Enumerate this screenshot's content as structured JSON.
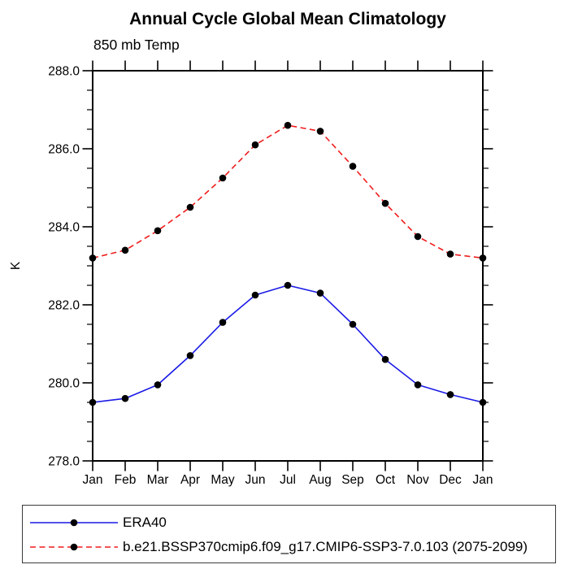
{
  "chart_data": {
    "type": "line",
    "title": "Annual Cycle Global Mean Climatology",
    "subtitle": "850 mb Temp",
    "ylabel": "K",
    "xlabel": "",
    "categories": [
      "Jan",
      "Feb",
      "Mar",
      "Apr",
      "May",
      "Jun",
      "Jul",
      "Aug",
      "Sep",
      "Oct",
      "Nov",
      "Dec",
      "Jan"
    ],
    "ylim": [
      278.0,
      288.0
    ],
    "ytick_major_interval": 2.0,
    "ytick_minor_interval": 0.5,
    "ytick_labels": [
      "278.0",
      "280.0",
      "282.0",
      "284.0",
      "286.0",
      "288.0"
    ],
    "grid": false,
    "legend_position": "bottom-left box",
    "axis_color": "#000000",
    "marker": "filled-circle",
    "series": [
      {
        "name": "ERA40",
        "color": "#1a1ae6",
        "line_style": "solid",
        "marker_color": "#000000",
        "values": [
          279.5,
          279.6,
          279.95,
          280.7,
          281.55,
          282.25,
          282.5,
          282.3,
          281.5,
          280.6,
          279.95,
          279.7,
          279.5
        ]
      },
      {
        "name": "b.e21.BSSP370cmip6.f09_g17.CMIP6-SSP3-7.0.103 (2075-2099)",
        "color": "#f01c1c",
        "line_style": "dashed",
        "marker_color": "#000000",
        "values": [
          283.2,
          283.4,
          283.9,
          284.5,
          285.25,
          286.1,
          286.6,
          286.45,
          285.55,
          284.6,
          283.75,
          283.3,
          283.2
        ]
      }
    ]
  }
}
